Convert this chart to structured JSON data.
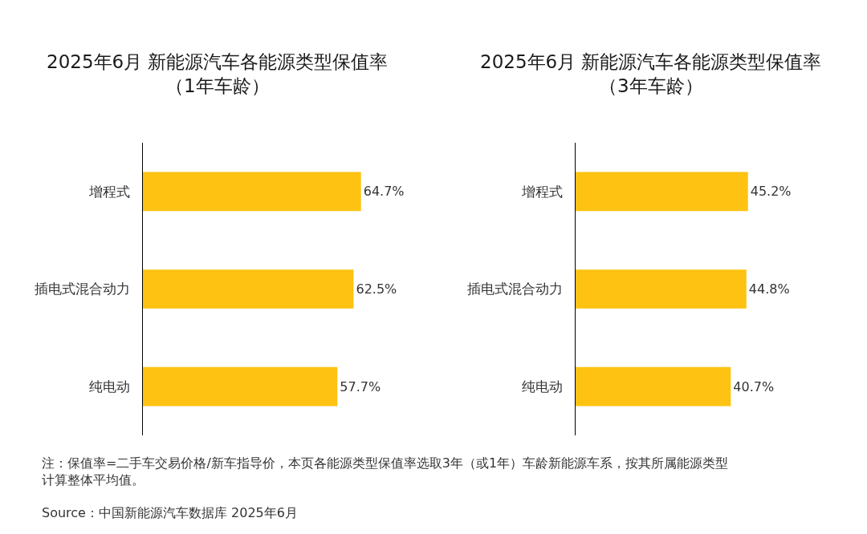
{
  "chart_data": [
    {
      "type": "bar",
      "orientation": "horizontal",
      "title": "2025年6月 新能源汽车各能源类型保值率（1年车龄）",
      "categories": [
        "增程式",
        "插电式混合动力",
        "纯电动"
      ],
      "values": [
        64.7,
        62.5,
        57.7
      ],
      "value_labels": [
        "64.7%",
        "62.5%",
        "57.7%"
      ],
      "color": "#fdc212",
      "tick_labels": "y",
      "annotations": [
        "注：保值率=二手车交易价格/新车指导价，本页各能源类型保值率选取3年（或1年）车龄新能源车系，按其所属能源类型计算整体平均值。",
        "Source：中国新能源汽车数据库 2025年6月"
      ]
    },
    {
      "type": "bar",
      "orientation": "horizontal",
      "title": "2025年6月 新能源汽车各能源类型保值率（3年车龄）",
      "categories": [
        "增程式",
        "插电式混合动力",
        "纯电动"
      ],
      "values": [
        45.2,
        44.8,
        40.7
      ],
      "value_labels": [
        "45.2%",
        "44.8%",
        "40.7%"
      ],
      "color": "#fdc212",
      "tick_labels": "y"
    }
  ]
}
